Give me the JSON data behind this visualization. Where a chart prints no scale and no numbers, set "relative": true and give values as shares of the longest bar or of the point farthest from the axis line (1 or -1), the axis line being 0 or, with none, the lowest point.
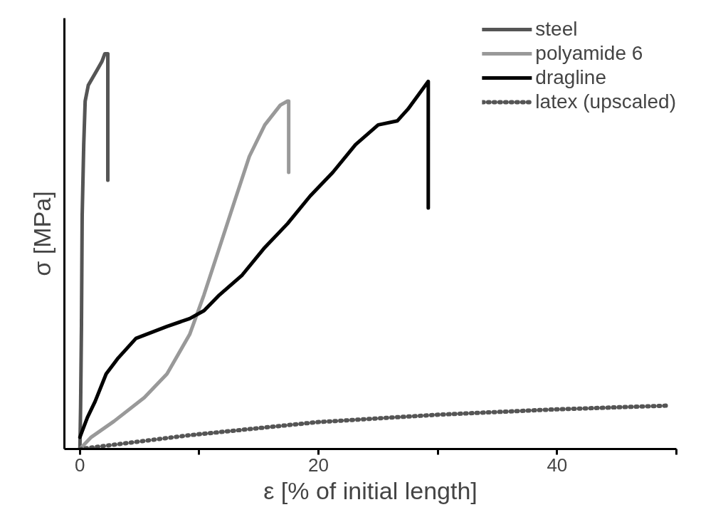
{
  "chart_data": {
    "type": "line",
    "relative": true,
    "xlabel": "ε [% of initial length]",
    "ylabel": "σ [MPa]",
    "xlim": [
      -1.3,
      50
    ],
    "xticks": [
      0,
      {
        "value": 10,
        "label": null
      },
      20,
      {
        "value": 30,
        "label": null
      },
      40,
      {
        "value": 50,
        "label": null
      }
    ],
    "tick_labels": "x",
    "grid": false,
    "legend": "top right",
    "marker": "none",
    "series": [
      {
        "name": "steel",
        "color": "#555555",
        "line_style": "solid",
        "x": [
          0,
          0.06,
          0.13,
          0.19,
          0.32,
          0.44,
          0.7,
          1.08,
          1.46,
          1.84,
          2.09,
          2.2,
          2.34,
          2.34
        ],
        "values": [
          0,
          0.11,
          0.31,
          0.59,
          0.77,
          0.88,
          0.92,
          0.94,
          0.96,
          0.98,
          1.0,
          1.0,
          1.0,
          0.68
        ]
      },
      {
        "name": "polyamide 6",
        "color": "#999999",
        "line_style": "solid",
        "x": [
          0,
          0.95,
          2.85,
          5.4,
          7.3,
          9.2,
          10.4,
          11.7,
          13.0,
          14.2,
          15.5,
          16.8,
          17.4,
          17.5,
          17.5
        ],
        "values": [
          0,
          0.03,
          0.07,
          0.13,
          0.19,
          0.29,
          0.39,
          0.51,
          0.63,
          0.74,
          0.82,
          0.87,
          0.88,
          0.88,
          0.7
        ]
      },
      {
        "name": "dragline",
        "color": "#000000",
        "line_style": "solid",
        "x": [
          0,
          0.63,
          1.27,
          2.2,
          3.2,
          4.7,
          7.3,
          9.2,
          10.4,
          11.7,
          13.6,
          15.5,
          17.4,
          19.3,
          21.2,
          23.1,
          25.0,
          26.6,
          27.5,
          29.2,
          29.2
        ],
        "values": [
          0.03,
          0.08,
          0.12,
          0.19,
          0.23,
          0.28,
          0.31,
          0.33,
          0.35,
          0.39,
          0.44,
          0.51,
          0.57,
          0.64,
          0.7,
          0.77,
          0.82,
          0.83,
          0.86,
          0.93,
          0.61
        ]
      },
      {
        "name": "latex (upscaled)",
        "color": "#555555",
        "line_style": "dotted",
        "x": [
          0,
          9.2,
          19.9,
          30.1,
          39.6,
          49.4
        ],
        "values": [
          0,
          0.035,
          0.068,
          0.087,
          0.1,
          0.11
        ]
      }
    ]
  }
}
